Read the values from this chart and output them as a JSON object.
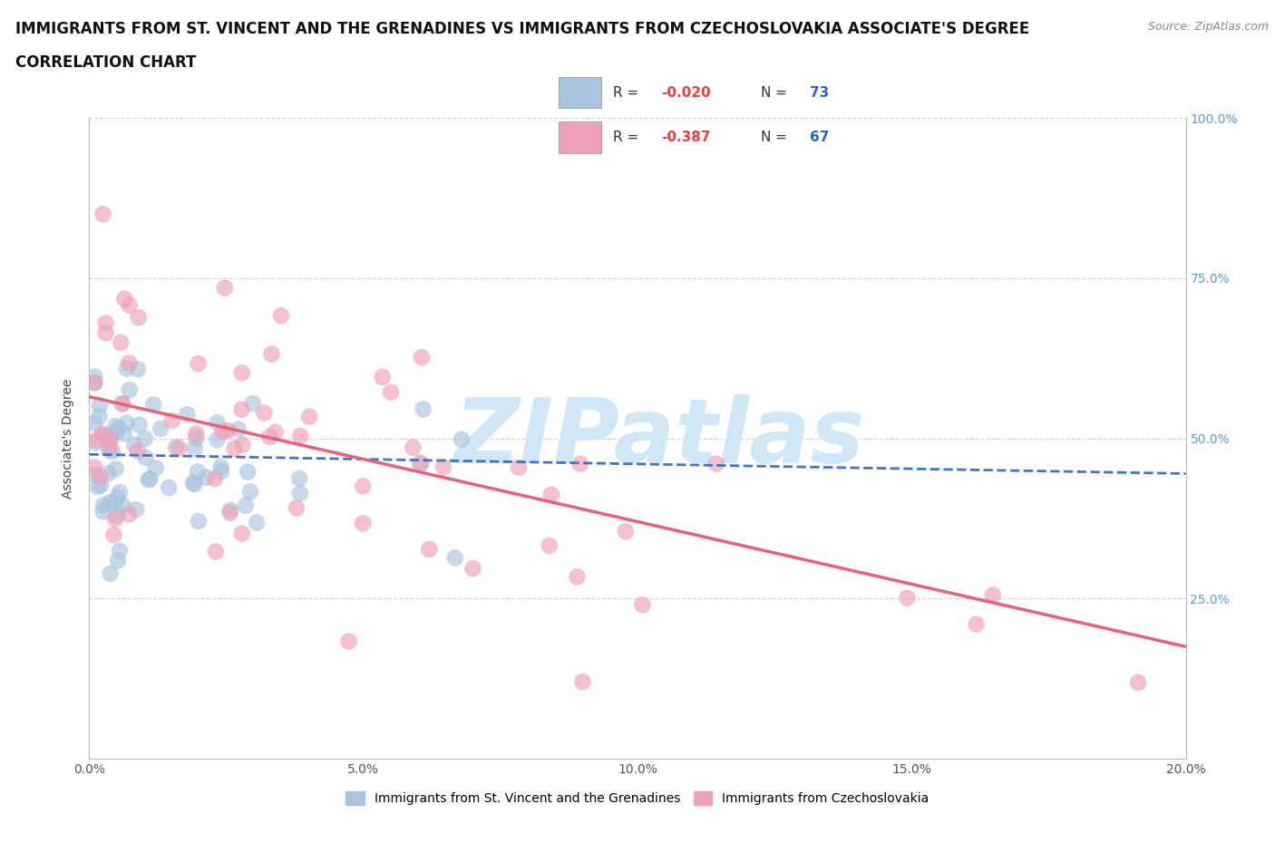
{
  "title_line1": "IMMIGRANTS FROM ST. VINCENT AND THE GRENADINES VS IMMIGRANTS FROM CZECHOSLOVAKIA ASSOCIATE'S DEGREE",
  "title_line2": "CORRELATION CHART",
  "source_text": "Source: ZipAtlas.com",
  "ylabel": "Associate's Degree",
  "xlim": [
    0.0,
    0.2
  ],
  "ylim": [
    0.0,
    1.0
  ],
  "xticks": [
    0.0,
    0.05,
    0.1,
    0.15,
    0.2
  ],
  "xtick_labels": [
    "0.0%",
    "5.0%",
    "10.0%",
    "15.0%",
    "20.0%"
  ],
  "yticks": [
    0.0,
    0.25,
    0.5,
    0.75,
    1.0
  ],
  "ytick_labels_right": [
    "",
    "25.0%",
    "50.0%",
    "75.0%",
    "100.0%"
  ],
  "series1_color": "#a8c4e0",
  "series2_color": "#f0a0b8",
  "series1_label": "Immigrants from St. Vincent and the Grenadines",
  "series2_label": "Immigrants from Czechoslovakia",
  "series1_R": -0.02,
  "series1_N": 73,
  "series2_R": -0.387,
  "series2_N": 67,
  "series1_line_color": "#4472c4",
  "series2_line_color": "#e8607a",
  "legend_R_color": "#e84040",
  "legend_N_color": "#2e7de0",
  "watermark_color": "#d0e8f5",
  "background_color": "#ffffff",
  "title_fontsize": 12,
  "axis_label_fontsize": 10,
  "tick_fontsize": 10,
  "right_tick_color": "#5b9bd5"
}
